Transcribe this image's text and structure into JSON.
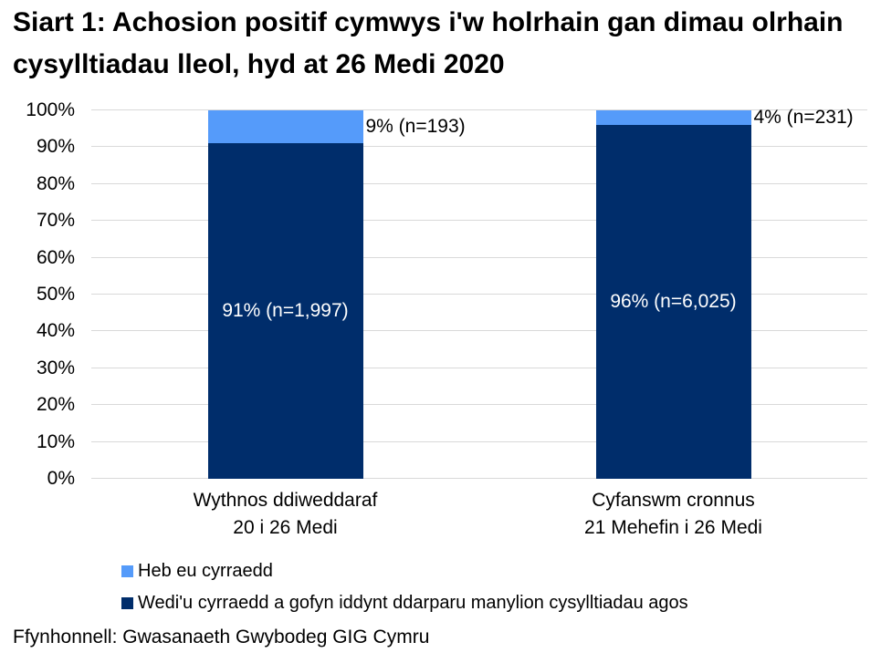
{
  "page": {
    "title": "Siart 1: Achosion positif cymwys i'w holrhain gan dimau olrhain cysylltiadau lleol, hyd at 26 Medi 2020",
    "source": "Ffynhonnell: Gwasanaeth Gwybodeg GIG Cymru"
  },
  "colors": {
    "reached": "#002D6B",
    "not_reached": "#559BFA",
    "gridline": "#D9D9D9",
    "inside_label_text": "#FFFFFF",
    "outside_label_text": "#000000",
    "text": "#000000",
    "background": "#FFFFFF"
  },
  "chart_data": {
    "type": "bar",
    "variant": "stacked-percent-column",
    "title": "Siart 1: Achosion positif cymwys i'w holrhain gan dimau olrhain cysylltiadau lleol, hyd at 26 Medi 2020",
    "categories": [
      {
        "line1": "Wythnos ddiweddaraf",
        "line2": "20 i 26 Medi"
      },
      {
        "line1": "Cyfanswm cronnus",
        "line2": "21 Mehefin i 26 Medi"
      }
    ],
    "series": [
      {
        "name": "Wedi'u cyrraedd a gofyn iddynt ddarparu manylion cysylltiadau agos",
        "color": "#002D6B",
        "values_pct": [
          91,
          96
        ],
        "counts": [
          1997,
          6025
        ],
        "data_labels": [
          "91% (n=1,997)",
          "96% (n=6,025)"
        ],
        "label_placement": "inside-center"
      },
      {
        "name": "Heb eu cyrraedd",
        "color": "#559BFA",
        "values_pct": [
          9,
          4
        ],
        "counts": [
          193,
          231
        ],
        "data_labels": [
          "9% (n=193)",
          "4% (n=231)"
        ],
        "label_placement": "outside-right"
      }
    ],
    "y_axis": {
      "ticks": [
        "0%",
        "10%",
        "20%",
        "30%",
        "40%",
        "50%",
        "60%",
        "70%",
        "80%",
        "90%",
        "100%"
      ],
      "min": 0,
      "max": 100,
      "grid": true
    },
    "legend": {
      "position": "bottom-left",
      "items": [
        {
          "label": "Heb eu cyrraedd",
          "color": "#559BFA"
        },
        {
          "label": "Wedi'u cyrraedd a gofyn iddynt ddarparu manylion cysylltiadau agos",
          "color": "#002D6B"
        }
      ]
    }
  }
}
